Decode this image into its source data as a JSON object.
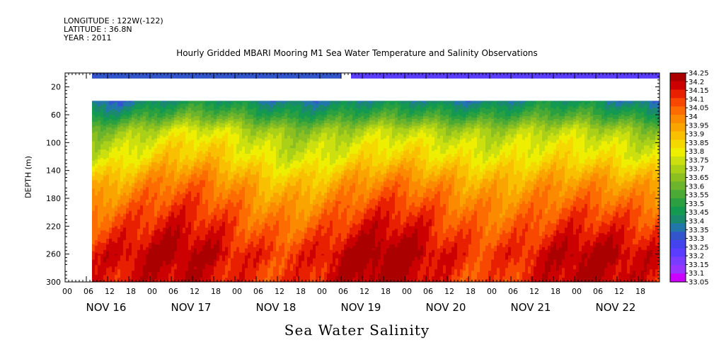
{
  "header": {
    "longitude": "LONGITUDE : 122W(-122)",
    "latitude": "LATITUDE : 36.8N",
    "year": "YEAR : 2011"
  },
  "chart_data": {
    "type": "heatmap",
    "title": "Hourly Gridded MBARI Mooring M1 Sea Water Temperature and Salinity Observations",
    "bottom_title": "Sea Water Salinity",
    "ylabel": "DEPTH (m)",
    "y_axis": {
      "range": [
        300,
        0
      ],
      "ticks": [
        20,
        60,
        100,
        140,
        180,
        220,
        260,
        300
      ],
      "reversed": true
    },
    "x_axis": {
      "hour_ticks": [
        "00",
        "06",
        "12",
        "18",
        "00",
        "06",
        "12",
        "18",
        "00",
        "06",
        "12",
        "18",
        "00",
        "06",
        "12",
        "18",
        "00",
        "06",
        "12",
        "18",
        "00",
        "06",
        "12",
        "18",
        "00",
        "06",
        "12",
        "18"
      ],
      "day_labels": [
        "NOV 16",
        "NOV 17",
        "NOV 18",
        "NOV 19",
        "NOV 20",
        "NOV 21",
        "NOV 22"
      ],
      "data_start": "NOV 16 06",
      "data_end": "NOV 22 23"
    },
    "levels": [
      33.05,
      33.1,
      33.15,
      33.2,
      33.25,
      33.3,
      33.35,
      33.4,
      33.45,
      33.5,
      33.55,
      33.6,
      33.65,
      33.7,
      33.75,
      33.8,
      33.85,
      33.9,
      33.95,
      34,
      34.05,
      34.1,
      34.15,
      34.2,
      34.25
    ],
    "level_labels": [
      "34.25",
      "34.2",
      "34.15",
      "34.1",
      "34.05",
      "34",
      "33.95",
      "33.9",
      "33.85",
      "33.8",
      "33.75",
      "33.7",
      "33.65",
      "33.6",
      "33.55",
      "33.5",
      "33.45",
      "33.4",
      "33.35",
      "33.3",
      "33.25",
      "33.2",
      "33.15",
      "33.1",
      "33.05"
    ],
    "colors": [
      "#cc00ff",
      "#9933ff",
      "#7a3cff",
      "#5b3dff",
      "#4444ee",
      "#3355cc",
      "#2277aa",
      "#1a8a6e",
      "#149a50",
      "#2aa040",
      "#4aaa34",
      "#6cb42c",
      "#8cc020",
      "#aad018",
      "#cce010",
      "#eeee00",
      "#f5d800",
      "#f8c000",
      "#faa400",
      "#fb8a00",
      "#fc6c00",
      "#f84800",
      "#e82000",
      "#cc0000",
      "#aa0000"
    ],
    "profile_salinity": [
      {
        "depth": 40,
        "value": 33.42
      },
      {
        "depth": 60,
        "value": 33.55
      },
      {
        "depth": 80,
        "value": 33.72
      },
      {
        "depth": 100,
        "value": 33.8
      },
      {
        "depth": 120,
        "value": 33.85
      },
      {
        "depth": 140,
        "value": 33.93
      },
      {
        "depth": 160,
        "value": 34.0
      },
      {
        "depth": 180,
        "value": 34.05
      },
      {
        "depth": 200,
        "value": 34.1
      },
      {
        "depth": 220,
        "value": 34.14
      },
      {
        "depth": 240,
        "value": 34.18
      },
      {
        "depth": 260,
        "value": 34.22
      },
      {
        "depth": 280,
        "value": 34.2
      },
      {
        "depth": 300,
        "value": 34.2
      }
    ],
    "surface_salinity": 33.3,
    "surface_depth_range": [
      0,
      8
    ],
    "data_gap_depth_range": [
      8,
      35
    ]
  }
}
